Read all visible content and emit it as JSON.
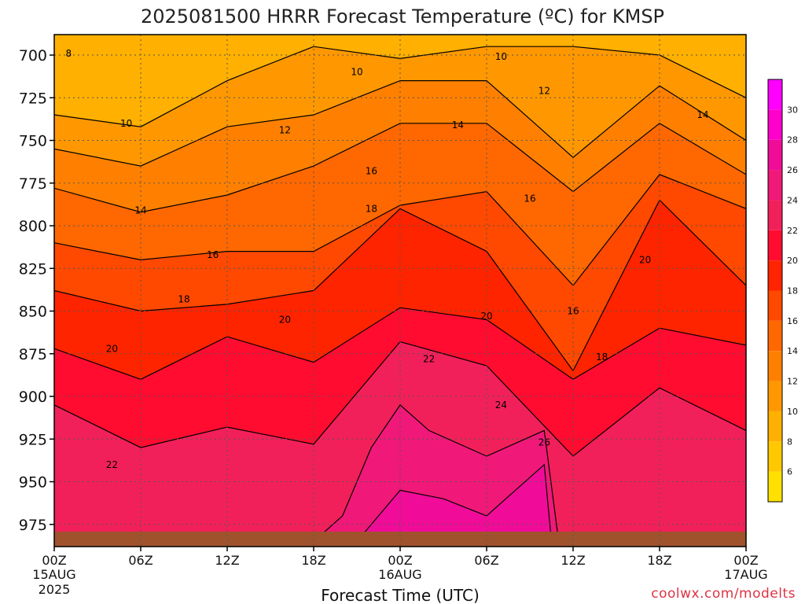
{
  "chart_data": {
    "type": "heatmap",
    "title": "2025081500 HRRR Forecast Temperature (ºC) for KMSP",
    "xlabel": "Forecast Time (UTC)",
    "ylabel": "",
    "credit": "coolwx.com/modelts",
    "y_axis": {
      "unit": "hPa",
      "range": [
        988,
        688
      ],
      "inverted": true,
      "ticks": [
        700,
        725,
        750,
        775,
        800,
        825,
        850,
        875,
        900,
        925,
        950,
        975
      ]
    },
    "x_axis": {
      "unit": "forecast hour",
      "range": [
        0,
        48
      ],
      "ticks": [
        {
          "hour": 0,
          "label": "00Z",
          "sub": [
            "15AUG",
            "2025"
          ]
        },
        {
          "hour": 6,
          "label": "06Z",
          "sub": []
        },
        {
          "hour": 12,
          "label": "12Z",
          "sub": []
        },
        {
          "hour": 18,
          "label": "18Z",
          "sub": []
        },
        {
          "hour": 24,
          "label": "00Z",
          "sub": [
            "16AUG"
          ]
        },
        {
          "hour": 30,
          "label": "06Z",
          "sub": []
        },
        {
          "hour": 36,
          "label": "12Z",
          "sub": []
        },
        {
          "hour": 42,
          "label": "18Z",
          "sub": []
        },
        {
          "hour": 48,
          "label": "00Z",
          "sub": [
            "17AUG"
          ]
        }
      ]
    },
    "grid": true,
    "colorbar": {
      "placement": "right",
      "ticks": [
        6,
        8,
        10,
        12,
        14,
        16,
        18,
        20,
        22,
        24,
        26,
        28,
        30
      ],
      "bins": [
        {
          "from": 4,
          "to": 6,
          "color": "#ffe000"
        },
        {
          "from": 6,
          "to": 8,
          "color": "#ffc800"
        },
        {
          "from": 8,
          "to": 10,
          "color": "#ffb000"
        },
        {
          "from": 10,
          "to": 12,
          "color": "#ff9800"
        },
        {
          "from": 12,
          "to": 14,
          "color": "#ff8000"
        },
        {
          "from": 14,
          "to": 16,
          "color": "#ff6800"
        },
        {
          "from": 16,
          "to": 18,
          "color": "#ff4800"
        },
        {
          "from": 18,
          "to": 20,
          "color": "#ff2400"
        },
        {
          "from": 20,
          "to": 22,
          "color": "#ff0c30"
        },
        {
          "from": 22,
          "to": 24,
          "color": "#f2205a"
        },
        {
          "from": 24,
          "to": 26,
          "color": "#f01878"
        },
        {
          "from": 26,
          "to": 28,
          "color": "#f00c98"
        },
        {
          "from": 28,
          "to": 30,
          "color": "#ff00cc"
        },
        {
          "from": 30,
          "to": 32,
          "color": "#ff00ff"
        }
      ]
    },
    "ground_color": "#a0522d",
    "series": [
      {
        "level": 20,
        "x": [
          0,
          6,
          12,
          18,
          24,
          30,
          36,
          42,
          48
        ],
        "y": [
          872,
          890,
          865,
          880,
          848,
          855,
          890,
          860,
          870
        ]
      },
      {
        "level": 18,
        "x": [
          0,
          6,
          12,
          18,
          24,
          30,
          36,
          42,
          48
        ],
        "y": [
          838,
          850,
          846,
          838,
          790,
          815,
          885,
          785,
          835
        ]
      },
      {
        "level": 16,
        "x": [
          0,
          6,
          12,
          18,
          24,
          30,
          36,
          42,
          48
        ],
        "y": [
          810,
          820,
          815,
          815,
          788,
          780,
          835,
          770,
          790
        ]
      },
      {
        "level": 14,
        "x": [
          0,
          6,
          12,
          18,
          24,
          30,
          36,
          42,
          48
        ],
        "y": [
          778,
          792,
          782,
          765,
          740,
          740,
          780,
          740,
          770
        ]
      },
      {
        "level": 12,
        "x": [
          0,
          6,
          12,
          18,
          24,
          30,
          36,
          42,
          48
        ],
        "y": [
          755,
          765,
          742,
          735,
          715,
          715,
          760,
          718,
          750
        ]
      },
      {
        "level": 10,
        "x": [
          0,
          6,
          12,
          18,
          24,
          30,
          36,
          42,
          48
        ],
        "y": [
          735,
          742,
          715,
          695,
          702,
          695,
          695,
          700,
          725
        ]
      },
      {
        "level": 22,
        "x": [
          0,
          6,
          12,
          18,
          24,
          30,
          36,
          42,
          48
        ],
        "y": [
          905,
          930,
          918,
          928,
          868,
          882,
          935,
          895,
          920
        ]
      },
      {
        "level": 24,
        "x": [
          18,
          20,
          22,
          24,
          26,
          30,
          34,
          35
        ],
        "y": [
          985,
          970,
          930,
          905,
          920,
          935,
          920,
          985
        ]
      },
      {
        "level": 26,
        "x": [
          21,
          24,
          27,
          30,
          34,
          34.5
        ],
        "y": [
          985,
          955,
          960,
          970,
          940,
          985
        ]
      }
    ],
    "contour_labels": [
      {
        "text": "8",
        "x": 1,
        "y": 699
      },
      {
        "text": "10",
        "x": 5,
        "y": 740
      },
      {
        "text": "10",
        "x": 21,
        "y": 710
      },
      {
        "text": "10",
        "x": 31,
        "y": 701
      },
      {
        "text": "12",
        "x": 16,
        "y": 744
      },
      {
        "text": "12",
        "x": 34,
        "y": 721
      },
      {
        "text": "14",
        "x": 6,
        "y": 791
      },
      {
        "text": "14",
        "x": 28,
        "y": 741
      },
      {
        "text": "14",
        "x": 45,
        "y": 735
      },
      {
        "text": "16",
        "x": 11,
        "y": 817
      },
      {
        "text": "16",
        "x": 22,
        "y": 768
      },
      {
        "text": "16",
        "x": 33,
        "y": 784
      },
      {
        "text": "16",
        "x": 36,
        "y": 850
      },
      {
        "text": "18",
        "x": 9,
        "y": 843
      },
      {
        "text": "18",
        "x": 22,
        "y": 790
      },
      {
        "text": "18",
        "x": 38,
        "y": 877
      },
      {
        "text": "20",
        "x": 4,
        "y": 872
      },
      {
        "text": "20",
        "x": 16,
        "y": 855
      },
      {
        "text": "20",
        "x": 30,
        "y": 853
      },
      {
        "text": "20",
        "x": 41,
        "y": 820
      },
      {
        "text": "22",
        "x": 4,
        "y": 940
      },
      {
        "text": "22",
        "x": 26,
        "y": 878
      },
      {
        "text": "24",
        "x": 31,
        "y": 905
      },
      {
        "text": "26",
        "x": 34,
        "y": 927
      }
    ]
  }
}
